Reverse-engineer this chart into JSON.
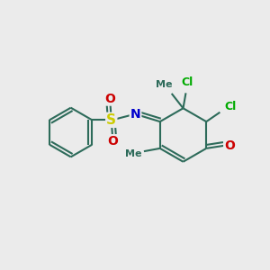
{
  "bg_color": "#ebebeb",
  "bond_color": "#2d6b5a",
  "bond_width": 1.5,
  "atom_colors": {
    "S": "#cccc00",
    "O": "#cc0000",
    "N": "#0000cc",
    "Cl": "#00aa00",
    "C": "#2d6b5a"
  },
  "font_size": 9,
  "ring_bond_color": "#2d6b5a"
}
